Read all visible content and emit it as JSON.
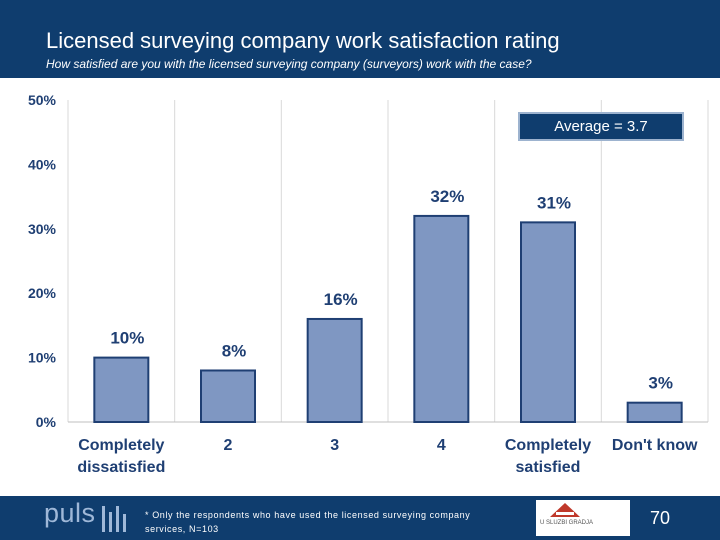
{
  "header": {
    "title": "Licensed surveying company work satisfaction rating",
    "subtitle": "How satisfied are you with the licensed surveying company (surveyors) work with the case?"
  },
  "average_label": "Average = 3.7",
  "footer": {
    "brand": "puls",
    "note": "* Only the respondents who have used the licensed surveying company services, N=103",
    "logo_text": "U SLUZBI GRADJA",
    "page_number": "70"
  },
  "colors": {
    "header_bg": "#0f3d6e",
    "bar_fill": "#7f97c2",
    "bar_stroke": "#1f3f73",
    "label_text": "#1f3f73",
    "grid": "#d9d9d9"
  },
  "chart_data": {
    "type": "bar",
    "categories": [
      [
        "Completely",
        "dissatisfied"
      ],
      [
        "2"
      ],
      [
        "3"
      ],
      [
        "4"
      ],
      [
        "Completely",
        "satisfied"
      ],
      [
        "Don't know"
      ]
    ],
    "values": [
      10,
      8,
      16,
      32,
      31,
      3
    ],
    "value_labels": [
      "10%",
      "8%",
      "16%",
      "32%",
      "31%",
      "3%"
    ],
    "ylim": [
      0,
      50
    ],
    "yticks": [
      0,
      10,
      20,
      30,
      40,
      50
    ],
    "ytick_labels": [
      "0%",
      "10%",
      "20%",
      "30%",
      "40%",
      "50%"
    ],
    "grid": "vertical",
    "title": "",
    "xlabel": "",
    "ylabel": ""
  }
}
